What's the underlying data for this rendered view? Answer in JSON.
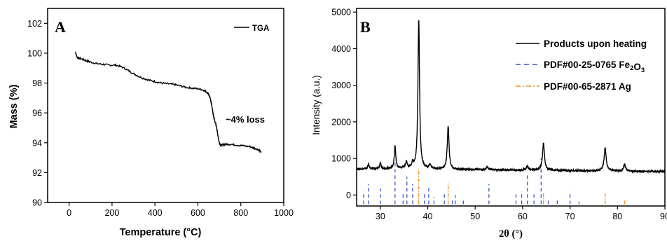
{
  "chart_data": [
    {
      "panel": "A",
      "type": "line",
      "xlabel": "Temperature (°C)",
      "ylabel": "Mass (%)",
      "xlim": [
        -100,
        1000
      ],
      "ylim": [
        90,
        103
      ],
      "xticks": [
        0,
        200,
        400,
        600,
        800,
        1000
      ],
      "yticks": [
        90,
        92,
        94,
        96,
        98,
        100,
        102
      ],
      "legend": "top-right",
      "annotation": "~4% loss",
      "series": [
        {
          "name": "TGA",
          "color": "#000000",
          "x": [
            30,
            35,
            40,
            60,
            80,
            100,
            130,
            160,
            190,
            220,
            250,
            280,
            310,
            340,
            370,
            400,
            430,
            460,
            490,
            520,
            550,
            580,
            610,
            630,
            645,
            655,
            662,
            668,
            674,
            680,
            686,
            692,
            698,
            705,
            715,
            730,
            750,
            780,
            810,
            840,
            860,
            880,
            895
          ],
          "y": [
            100.1,
            99.8,
            99.7,
            99.6,
            99.5,
            99.4,
            99.3,
            99.25,
            99.2,
            99.2,
            99.05,
            98.8,
            98.55,
            98.35,
            98.2,
            98.1,
            98.0,
            97.95,
            97.9,
            97.8,
            97.7,
            97.65,
            97.6,
            97.5,
            97.35,
            97.1,
            96.7,
            96.2,
            95.7,
            95.4,
            95.1,
            94.6,
            94.1,
            93.85,
            93.85,
            93.9,
            93.9,
            93.85,
            93.8,
            93.75,
            93.65,
            93.55,
            93.4
          ]
        }
      ]
    },
    {
      "panel": "B",
      "type": "line",
      "xlabel": "2θ (°)",
      "ylabel": "Intensity (a.u.)",
      "xlim": [
        25,
        90
      ],
      "ylim": [
        -300,
        5100
      ],
      "xticks": [
        30,
        40,
        50,
        60,
        70,
        80,
        90
      ],
      "yticks": [
        0,
        1000,
        2000,
        3000,
        4000,
        5000
      ],
      "legend": "top-right",
      "series": [
        {
          "name": "Products upon heating",
          "color": "#000000",
          "baseline": [
            [
              25,
              710
            ],
            [
              35,
              730
            ],
            [
              45,
              700
            ],
            [
              60,
              680
            ],
            [
              75,
              660
            ],
            [
              90,
              640
            ]
          ],
          "peaks": [
            {
              "x": 27.5,
              "h": 120,
              "w": 0.18
            },
            {
              "x": 30.0,
              "h": 140,
              "w": 0.18
            },
            {
              "x": 33.1,
              "h": 620,
              "w": 0.18
            },
            {
              "x": 35.5,
              "h": 170,
              "w": 0.2
            },
            {
              "x": 36.8,
              "h": 140,
              "w": 0.2
            },
            {
              "x": 38.1,
              "h": 4080,
              "w": 0.2
            },
            {
              "x": 40.5,
              "h": 110,
              "w": 0.2
            },
            {
              "x": 44.3,
              "h": 1170,
              "w": 0.22
            },
            {
              "x": 52.5,
              "h": 70,
              "w": 0.25
            },
            {
              "x": 61.0,
              "h": 110,
              "w": 0.25
            },
            {
              "x": 64.4,
              "h": 740,
              "w": 0.25
            },
            {
              "x": 77.4,
              "h": 620,
              "w": 0.27
            },
            {
              "x": 81.5,
              "h": 180,
              "w": 0.27
            }
          ]
        },
        {
          "name": "PDF#00-25-0765 Fe₂O₃",
          "color": "#3b52c4",
          "dash": "dashed",
          "sticks": [
            [
              26.5,
              -250,
              100
            ],
            [
              27.5,
              -250,
              300
            ],
            [
              30.0,
              -250,
              180
            ],
            [
              33.1,
              -250,
              900
            ],
            [
              34.8,
              -250,
              30
            ],
            [
              35.6,
              -250,
              500
            ],
            [
              36.8,
              -250,
              300
            ],
            [
              39.3,
              -250,
              30
            ],
            [
              40.2,
              -250,
              270
            ],
            [
              41.3,
              -250,
              -50
            ],
            [
              43.5,
              -250,
              50
            ],
            [
              45.2,
              -250,
              -120
            ],
            [
              45.8,
              -250,
              0
            ],
            [
              47.5,
              -250,
              -100
            ],
            [
              52.9,
              -250,
              300
            ],
            [
              58.6,
              -250,
              20
            ],
            [
              59.8,
              -250,
              100
            ],
            [
              61.0,
              -250,
              580
            ],
            [
              62.4,
              -250,
              60
            ],
            [
              63.9,
              -250,
              1000
            ],
            [
              65.4,
              -250,
              -100
            ],
            [
              67.3,
              -250,
              -150
            ],
            [
              70.0,
              -250,
              100
            ],
            [
              71.9,
              -250,
              -180
            ]
          ]
        },
        {
          "name": "PDF#00-65-2871 Ag",
          "color": "#f28a1e",
          "dash": "dashdot",
          "sticks": [
            [
              38.1,
              -250,
              750
            ],
            [
              44.3,
              -250,
              320
            ],
            [
              64.4,
              -250,
              80
            ],
            [
              77.4,
              -250,
              80
            ],
            [
              81.5,
              -250,
              -120
            ]
          ]
        }
      ]
    }
  ]
}
